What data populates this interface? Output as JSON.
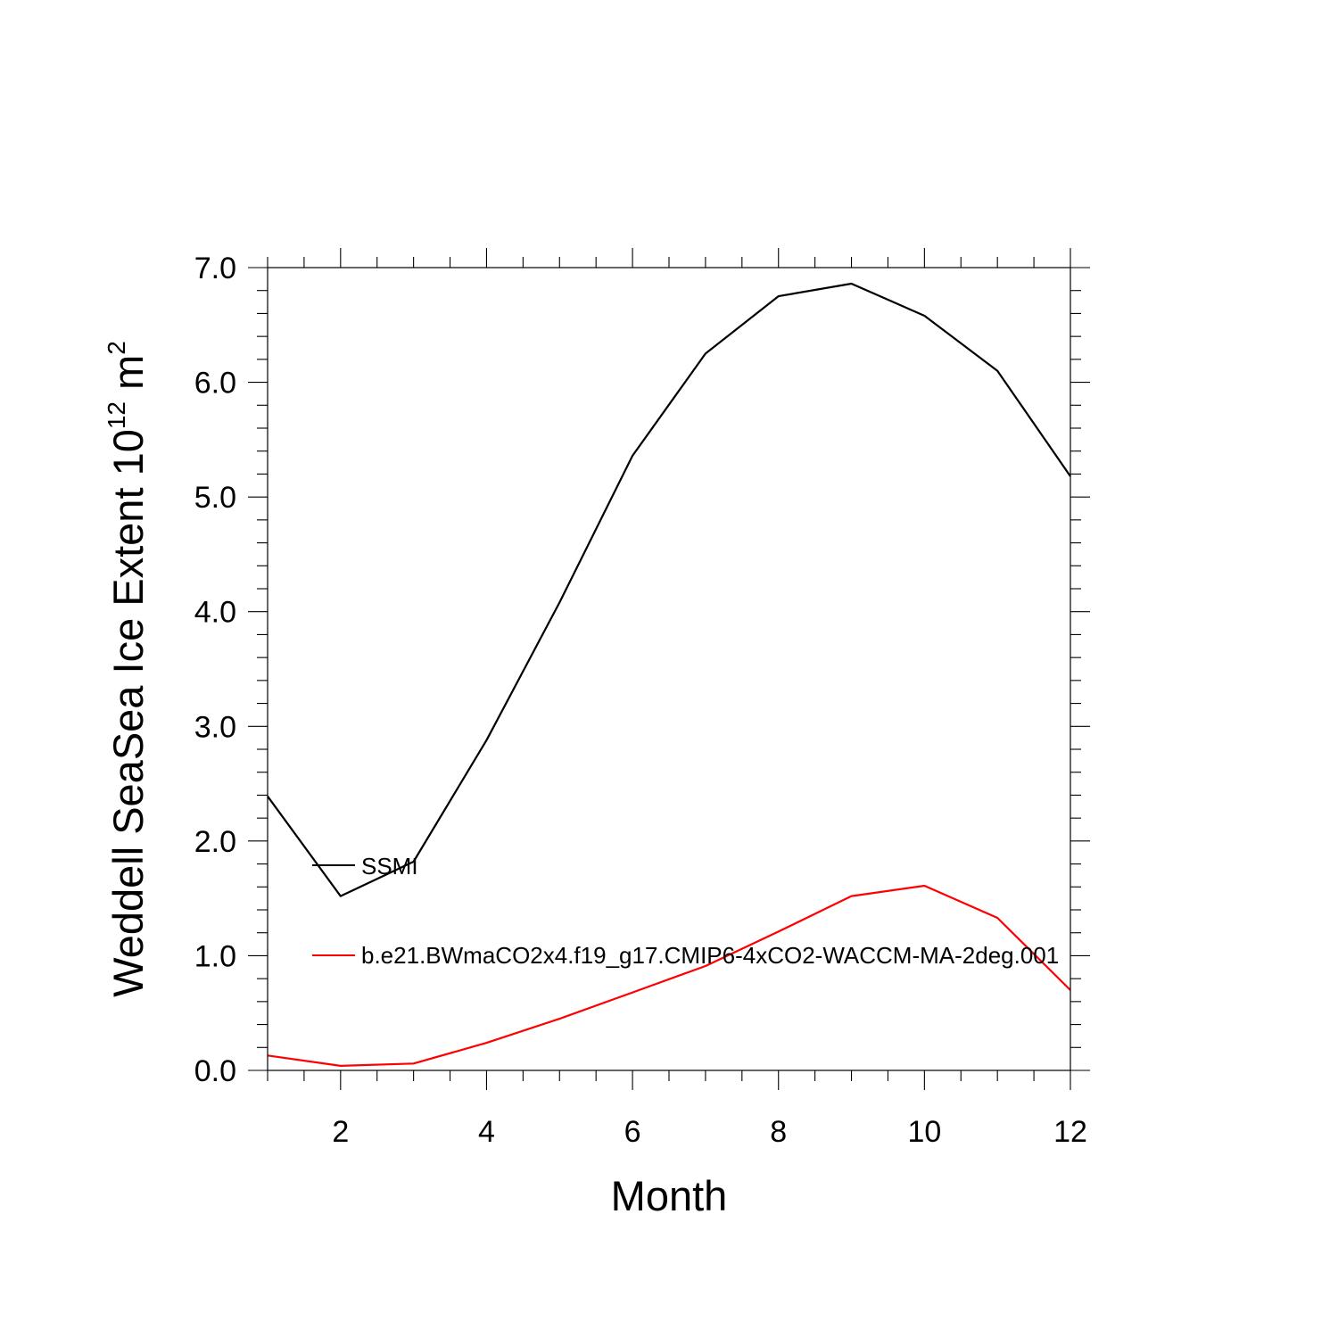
{
  "chart_data": {
    "type": "line",
    "title": "",
    "xlabel": "Month",
    "ylabel": {
      "main": "Weddell SeaSea Ice Extent 10",
      "exponent": "12",
      "unit_base": "m",
      "unit_exponent": "2"
    },
    "xlim": [
      1,
      12
    ],
    "ylim": [
      0,
      7
    ],
    "x_ticks": [
      2,
      4,
      6,
      8,
      10,
      12
    ],
    "y_ticks": [
      "0.0",
      "1.0",
      "2.0",
      "3.0",
      "4.0",
      "5.0",
      "6.0",
      "7.0"
    ],
    "grid": false,
    "legend_position": "lower-left inside",
    "x": [
      1,
      2,
      3,
      4,
      5,
      6,
      7,
      8,
      9,
      10,
      11,
      12
    ],
    "series": [
      {
        "name": "SSMI",
        "color": "#000000",
        "values": [
          2.39,
          1.52,
          1.82,
          2.88,
          4.08,
          5.36,
          6.25,
          6.75,
          6.86,
          6.58,
          6.1,
          5.18
        ]
      },
      {
        "name": "b.e21.BWmaCO2x4.f19_g17.CMIP6-4xCO2-WACCM-MA-2deg.001",
        "color": "#ff0000",
        "values": [
          0.13,
          0.04,
          0.06,
          0.24,
          0.45,
          0.68,
          0.91,
          1.21,
          1.52,
          1.61,
          1.33,
          0.7
        ]
      }
    ]
  }
}
